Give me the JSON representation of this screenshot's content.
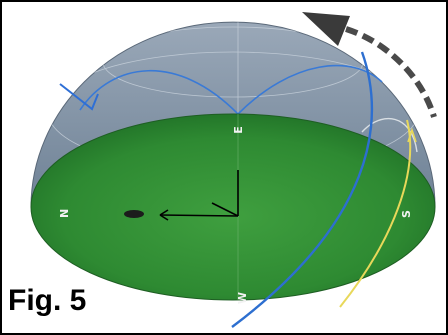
{
  "figure": {
    "label": "Fig. 5"
  },
  "compass": {
    "north": "N",
    "east": "E",
    "south": "S",
    "west": "W"
  },
  "colors": {
    "dome": "#8293a6",
    "ground": "#2f8f34",
    "sun_path_blue": "#2d6fd0",
    "sun_path_yellow": "#e8d85a",
    "arrow": "#4a4a4a"
  }
}
